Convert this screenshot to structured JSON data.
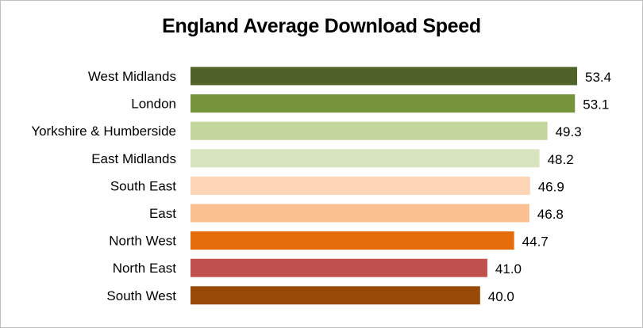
{
  "chart_data": {
    "type": "bar",
    "orientation": "horizontal",
    "title": "England Average Download Speed",
    "xlabel": "",
    "ylabel": "",
    "categories": [
      "West Midlands",
      "London",
      "Yorkshire & Humberside",
      "East Midlands",
      "South East",
      "East",
      "North West",
      "North East",
      "South West"
    ],
    "values": [
      53.4,
      53.1,
      49.3,
      48.2,
      46.9,
      46.8,
      44.7,
      41.0,
      40.0
    ],
    "value_labels": [
      "53.4",
      "53.1",
      "49.3",
      "48.2",
      "46.9",
      "46.8",
      "44.7",
      "41.0",
      "40.0"
    ],
    "colors": [
      "#4f6228",
      "#77933c",
      "#c3d69b",
      "#d7e4bd",
      "#fcd5b5",
      "#fac090",
      "#e46c0a",
      "#c0504d",
      "#984807"
    ],
    "xlim": [
      0,
      53.4
    ],
    "grid": false,
    "legend": "none"
  }
}
